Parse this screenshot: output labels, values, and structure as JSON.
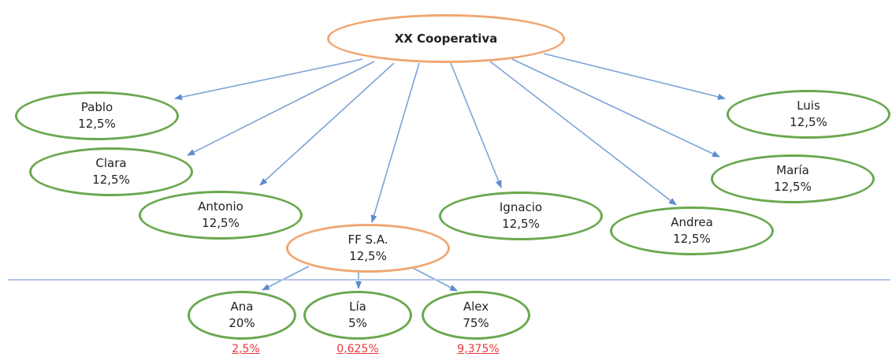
{
  "root": {
    "name": "XX Cooperativa"
  },
  "members": [
    {
      "name": "Pablo",
      "share": "12,5%"
    },
    {
      "name": "Clara",
      "share": "12,5%"
    },
    {
      "name": "Antonio",
      "share": "12,5%"
    },
    {
      "name": "FF S.A.",
      "share": "12,5%"
    },
    {
      "name": "Ignacio",
      "share": "12,5%"
    },
    {
      "name": "Andrea",
      "share": "12,5%"
    },
    {
      "name": "María",
      "share": "12,5%"
    },
    {
      "name": "Luis",
      "share": "12,5%"
    }
  ],
  "ff_members": [
    {
      "name": "Ana",
      "share": "20%",
      "effective": "2,5%"
    },
    {
      "name": "Lía",
      "share": "5%",
      "effective": "0,625%"
    },
    {
      "name": "Alex",
      "share": "75%",
      "effective": "9,375%"
    }
  ],
  "colors": {
    "green_border": "#6aa84f",
    "orange_border": "#f0a672",
    "arrow": "#7da3d8",
    "divider": "#b4c7e7",
    "effective_text": "#e8383d"
  }
}
